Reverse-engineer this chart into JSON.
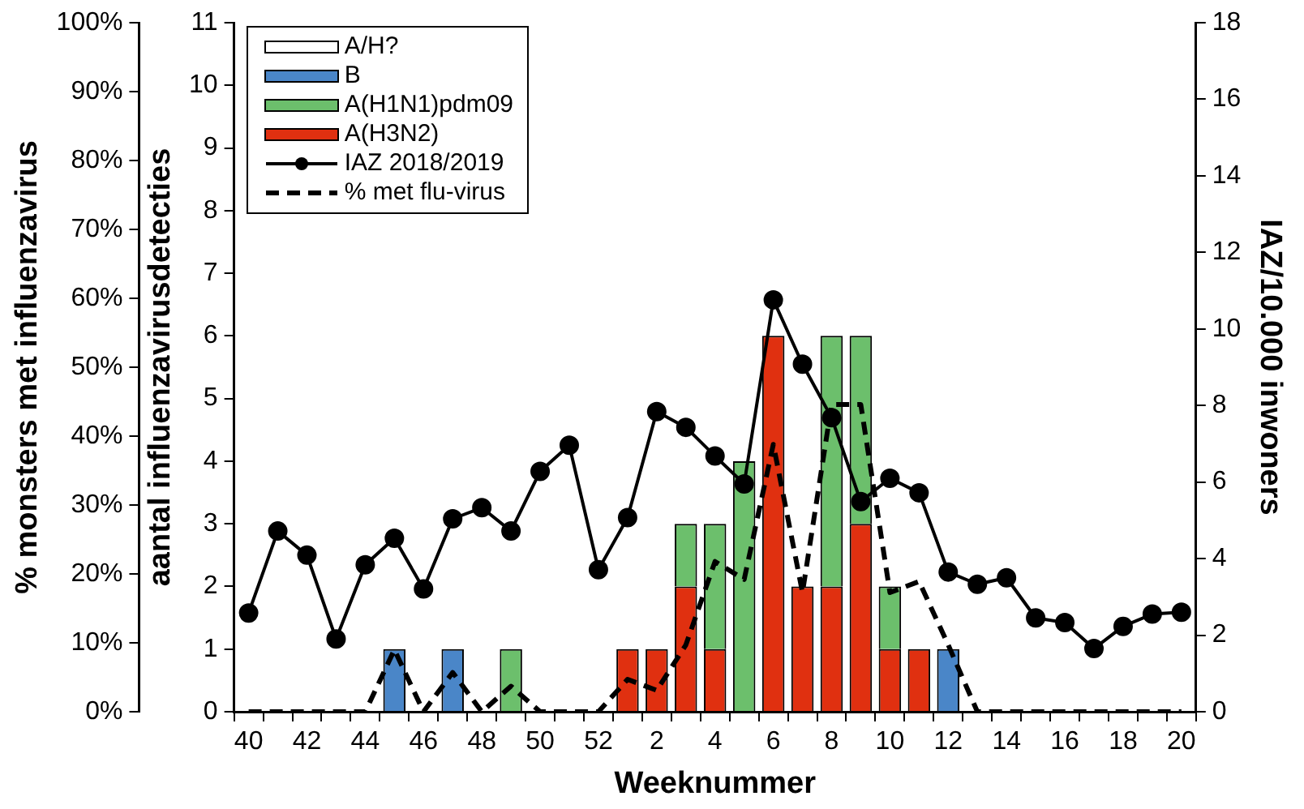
{
  "chart_data": {
    "type": "bar",
    "stacked": true,
    "legend": "top left",
    "grid": false,
    "categories": [
      "40",
      null,
      "42",
      null,
      "44",
      null,
      "46",
      null,
      "48",
      null,
      "50",
      null,
      "52",
      null,
      "2",
      null,
      "4",
      null,
      "6",
      null,
      "8",
      null,
      "10",
      null,
      "12",
      null,
      "14",
      null,
      "16",
      null,
      "18",
      null,
      "20"
    ],
    "series": [
      {
        "name": "A(H3N2)",
        "color": "#e03010",
        "values": [
          0,
          0,
          0,
          0,
          0,
          0,
          0,
          0,
          0,
          0,
          0,
          0,
          0,
          1,
          1,
          2,
          1,
          0,
          6,
          2,
          2,
          3,
          1,
          1,
          0,
          0,
          0,
          0,
          0,
          0,
          0,
          0,
          0
        ]
      },
      {
        "name": "A(H1N1)pdm09",
        "color": "#6cbf6c",
        "values": [
          0,
          0,
          0,
          0,
          0,
          0,
          0,
          0,
          0,
          1,
          0,
          0,
          0,
          0,
          0,
          1,
          2,
          4,
          0,
          0,
          4,
          3,
          1,
          0,
          0,
          0,
          0,
          0,
          0,
          0,
          0,
          0,
          0
        ]
      },
      {
        "name": "B",
        "color": "#4a86c8",
        "values": [
          0,
          0,
          0,
          0,
          0,
          1,
          0,
          1,
          0,
          0,
          0,
          0,
          0,
          0,
          0,
          0,
          0,
          0,
          0,
          0,
          0,
          0,
          0,
          0,
          1,
          0,
          0,
          0,
          0,
          0,
          0,
          0,
          0
        ]
      },
      {
        "name": "A/H?",
        "color": "#ffffff",
        "values": [
          0,
          0,
          0,
          0,
          0,
          0,
          0,
          0,
          0,
          0,
          0,
          0,
          0,
          0,
          0,
          0,
          0,
          0,
          0,
          0,
          0,
          0,
          0,
          0,
          0,
          0,
          0,
          0,
          0,
          0,
          0,
          0,
          0
        ]
      },
      {
        "name": "IAZ 2018/2019",
        "type": "line",
        "axis": "y2",
        "color": "#000000",
        "marker": "circle",
        "line_style": "solid",
        "values": [
          2.58,
          4.72,
          4.09,
          1.9,
          3.84,
          4.53,
          3.21,
          5.04,
          5.33,
          4.72,
          6.28,
          6.96,
          3.71,
          5.07,
          7.84,
          7.43,
          6.68,
          5.95,
          10.76,
          9.08,
          7.68,
          5.49,
          6.1,
          5.72,
          3.65,
          3.33,
          3.5,
          2.45,
          2.33,
          1.65,
          2.23,
          2.55,
          2.6
        ]
      },
      {
        "name": "% met flu-virus",
        "type": "line",
        "axis": "y3",
        "color": "#000000",
        "marker": "none",
        "line_style": "dashed",
        "values": [
          0,
          0,
          0,
          0,
          0,
          9,
          0,
          5.7,
          0,
          3.7,
          0,
          0,
          0,
          4.7,
          3.1,
          9.7,
          21.8,
          19.2,
          38.8,
          17.3,
          44.6,
          44.6,
          17.3,
          18.9,
          9.7,
          0,
          0,
          0,
          0,
          0,
          0,
          0,
          0
        ]
      }
    ],
    "xlabel": "Weeknummer",
    "ylabel": "aantal influenzavirusdetecties",
    "y2label": "IAZ/10.000 inwoners",
    "y3label": "% monsters met influenzavirus",
    "ylim": [
      0,
      11
    ],
    "yticks": [
      0,
      1,
      2,
      3,
      4,
      5,
      6,
      7,
      8,
      9,
      10,
      11
    ],
    "y2lim": [
      0,
      18
    ],
    "y2ticks": [
      0,
      2,
      4,
      6,
      8,
      10,
      12,
      14,
      16,
      18
    ],
    "y3lim": [
      0,
      100
    ],
    "y3ticks": [
      {
        "value": 0,
        "label": "0%"
      },
      {
        "value": 10,
        "label": "10%"
      },
      {
        "value": 20,
        "label": "20%"
      },
      {
        "value": 30,
        "label": "30%"
      },
      {
        "value": 40,
        "label": "40%"
      },
      {
        "value": 50,
        "label": "50%"
      },
      {
        "value": 60,
        "label": "60%"
      },
      {
        "value": 70,
        "label": "70%"
      },
      {
        "value": 80,
        "label": "80%"
      },
      {
        "value": 90,
        "label": "90%"
      },
      {
        "value": 100,
        "label": "100%"
      }
    ]
  }
}
